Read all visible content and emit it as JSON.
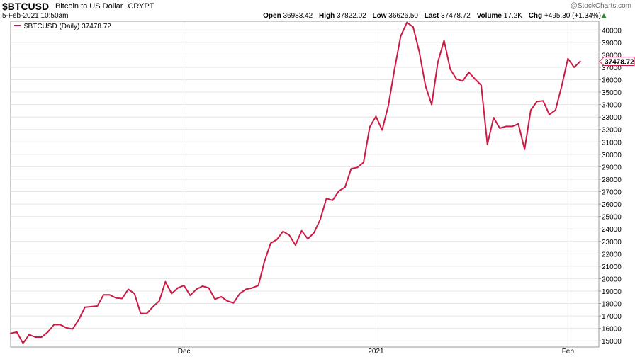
{
  "header": {
    "symbol": "$BTCUSD",
    "name": "Bitcoin to US Dollar",
    "exchange": "CRYPT",
    "datetime": "5-Feb-2021 10:50am",
    "brand": "@StockCharts.com",
    "open_label": "Open",
    "open": "36983.42",
    "high_label": "High",
    "high": "37822.02",
    "low_label": "Low",
    "low": "36626.50",
    "last_label": "Last",
    "last": "37478.72",
    "volume_label": "Volume",
    "volume": "17.2K",
    "chg_label": "Chg",
    "chg": "+495.30 (+1.34%)"
  },
  "colors": {
    "line": "#cc1a44",
    "grid": "#e6e6e6",
    "axis": "#999999",
    "up": "#2a8a2a"
  },
  "chart_data": {
    "type": "line",
    "legend": "$BTCUSD (Daily) 37478.72",
    "last_value_label": "37478.72",
    "xlabel": "",
    "ylabel": "",
    "grid": true,
    "legend_position": "top-left",
    "ylim": [
      14500,
      40700
    ],
    "yticks": [
      15000,
      16000,
      17000,
      18000,
      19000,
      20000,
      21000,
      22000,
      23000,
      24000,
      25000,
      26000,
      27000,
      28000,
      29000,
      30000,
      31000,
      32000,
      33000,
      34000,
      35000,
      36000,
      37000,
      38000,
      39000,
      40000
    ],
    "ytick_labels": [
      "15000",
      "16000",
      "17000",
      "18000",
      "19000",
      "20000",
      "21000",
      "22000",
      "23000",
      "24000",
      "25000",
      "26000",
      "27000",
      "28000",
      "29000",
      "30000",
      "31000",
      "32000",
      "33000",
      "34000",
      "35000",
      "36000",
      "37000",
      "38000",
      "39000",
      "40000"
    ],
    "xticks": [
      {
        "label": "Dec",
        "index": 28
      },
      {
        "label": "2021",
        "index": 59
      },
      {
        "label": "Feb",
        "index": 90
      }
    ],
    "xrange": [
      0,
      95
    ],
    "series": [
      {
        "name": "$BTCUSD",
        "values": [
          15600,
          15700,
          14800,
          15500,
          15300,
          15300,
          15700,
          16300,
          16300,
          16050,
          15950,
          16700,
          17700,
          17750,
          17800,
          18700,
          18700,
          18450,
          18400,
          19150,
          18800,
          17200,
          17200,
          17750,
          18200,
          19750,
          18800,
          19250,
          19450,
          18650,
          19150,
          19400,
          19250,
          18350,
          18550,
          18200,
          18050,
          18800,
          19150,
          19250,
          19450,
          21400,
          22850,
          23150,
          23800,
          23500,
          22700,
          23850,
          23200,
          23700,
          24750,
          26450,
          26300,
          27050,
          27350,
          28850,
          28950,
          29350,
          32200,
          33050,
          31950,
          33900,
          36850,
          39500,
          40600,
          40250,
          38250,
          35500,
          34000,
          37400,
          39150,
          36850,
          36050,
          35900,
          36600,
          36050,
          35550,
          30800,
          32950,
          32100,
          32250,
          32250,
          32450,
          30400,
          33550,
          34250,
          34300,
          33200,
          33550,
          35500,
          37700,
          37000,
          37478.72
        ]
      }
    ]
  }
}
